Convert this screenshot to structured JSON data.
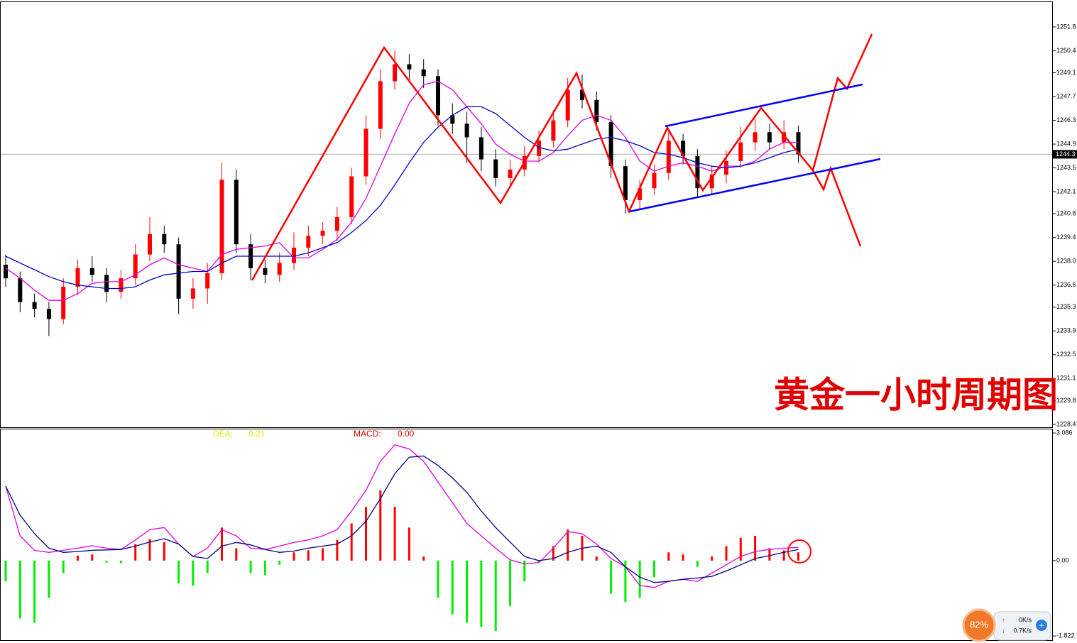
{
  "chart_data": [
    {
      "type": "candlestick",
      "title": "黄金一小时周期图",
      "open": [
        1237.8,
        1237.0,
        1235.6,
        1235.2,
        1234.6,
        1236.5,
        1237.6,
        1237.2,
        1236.2,
        1237.0,
        1238.4,
        1239.6,
        1239.0,
        1235.8,
        1236.4,
        1237.3,
        1242.8,
        1239.0,
        1237.6,
        1237.2,
        1237.9,
        1238.8,
        1239.5,
        1239.8,
        1240.6,
        1243.0,
        1245.8,
        1248.6,
        1249.6,
        1249.3,
        1248.9,
        1246.6,
        1246.1,
        1245.3,
        1244.0,
        1242.9,
        1243.4,
        1244.2,
        1245.1,
        1246.3,
        1248.1,
        1247.5,
        1246.2,
        1243.6,
        1241.6,
        1242.3,
        1243.2,
        1245.1,
        1244.2,
        1242.3,
        1243.1,
        1243.9,
        1245.0,
        1245.6,
        1245.0,
        1245.6
      ],
      "high": [
        1238.4,
        1237.4,
        1236.1,
        1235.6,
        1237.0,
        1238.1,
        1238.3,
        1237.6,
        1237.5,
        1239.0,
        1240.6,
        1240.1,
        1239.4,
        1237.0,
        1237.9,
        1243.8,
        1243.4,
        1239.6,
        1238.1,
        1238.5,
        1239.7,
        1240.1,
        1240.3,
        1241.2,
        1243.5,
        1246.6,
        1249.3,
        1250.4,
        1250.2,
        1249.9,
        1249.3,
        1247.3,
        1246.8,
        1245.9,
        1244.6,
        1244.0,
        1244.8,
        1245.7,
        1246.9,
        1248.8,
        1249.0,
        1248.0,
        1246.6,
        1244.0,
        1242.8,
        1243.7,
        1245.8,
        1245.5,
        1244.6,
        1243.6,
        1244.5,
        1245.9,
        1246.4,
        1246.1,
        1246.3,
        1246.0
      ],
      "low": [
        1236.5,
        1235.0,
        1234.7,
        1233.6,
        1234.3,
        1236.0,
        1236.8,
        1235.6,
        1235.8,
        1236.6,
        1238.0,
        1238.5,
        1234.9,
        1235.2,
        1235.5,
        1236.9,
        1238.5,
        1236.9,
        1236.7,
        1236.8,
        1237.5,
        1238.3,
        1239.0,
        1239.2,
        1240.2,
        1242.5,
        1245.2,
        1248.1,
        1248.7,
        1248.2,
        1246.0,
        1245.5,
        1243.8,
        1243.3,
        1242.4,
        1242.5,
        1243.0,
        1243.8,
        1244.7,
        1245.9,
        1247.0,
        1245.7,
        1242.9,
        1240.8,
        1241.1,
        1241.9,
        1242.8,
        1243.7,
        1241.8,
        1241.9,
        1242.6,
        1243.5,
        1244.5,
        1244.6,
        1244.6,
        1243.8
      ],
      "close": [
        1237.0,
        1235.6,
        1235.2,
        1234.6,
        1236.5,
        1237.6,
        1237.2,
        1236.2,
        1237.0,
        1238.4,
        1239.6,
        1239.0,
        1235.8,
        1236.4,
        1237.3,
        1242.8,
        1239.0,
        1237.6,
        1237.2,
        1237.9,
        1238.8,
        1239.5,
        1239.8,
        1240.6,
        1243.0,
        1245.8,
        1248.6,
        1249.6,
        1249.3,
        1248.9,
        1246.6,
        1246.1,
        1245.3,
        1244.0,
        1242.9,
        1243.4,
        1244.2,
        1245.1,
        1246.3,
        1248.1,
        1247.5,
        1246.2,
        1243.6,
        1241.6,
        1242.3,
        1243.2,
        1245.1,
        1244.2,
        1242.3,
        1243.1,
        1243.9,
        1245.0,
        1245.6,
        1245.0,
        1245.6,
        1244.3
      ],
      "up_color": "#ff0000",
      "down_color": "#000000",
      "series": [
        {
          "color": "#e000e0",
          "values": [
            1237.6,
            1237.0,
            1236.3,
            1235.7,
            1235.7,
            1236.1,
            1236.7,
            1236.8,
            1236.8,
            1237.2,
            1237.8,
            1238.2,
            1237.8,
            1237.6,
            1237.4,
            1238.4,
            1238.7,
            1238.8,
            1238.9,
            1239.1,
            1238.2,
            1238.2,
            1238.7,
            1239.3,
            1240.3,
            1241.7,
            1243.6,
            1245.5,
            1247.3,
            1248.4,
            1248.6,
            1248.1,
            1247.1,
            1246.1,
            1244.9,
            1244.3,
            1243.9,
            1243.9,
            1244.4,
            1245.4,
            1246.3,
            1246.6,
            1246.3,
            1245.3,
            1243.9,
            1243.3,
            1243.6,
            1243.8,
            1243.6,
            1243.3,
            1243.6,
            1243.6,
            1243.9,
            1244.6,
            1245.0,
            1245.0
          ]
        },
        {
          "color": "#0000cc",
          "values": [
            1238.3,
            1237.9,
            1237.5,
            1237.1,
            1236.8,
            1236.6,
            1236.5,
            1236.4,
            1236.4,
            1236.5,
            1236.9,
            1237.2,
            1237.3,
            1237.4,
            1237.4,
            1237.9,
            1238.3,
            1238.3,
            1238.3,
            1238.3,
            1238.3,
            1238.5,
            1238.8,
            1239.1,
            1239.7,
            1240.4,
            1241.3,
            1242.5,
            1243.8,
            1245.0,
            1245.9,
            1246.6,
            1247.1,
            1247.1,
            1246.7,
            1246.0,
            1245.3,
            1244.7,
            1244.5,
            1244.6,
            1244.9,
            1245.2,
            1245.3,
            1245.1,
            1244.8,
            1244.4,
            1244.3,
            1244.1,
            1243.8,
            1243.6,
            1243.5,
            1243.6,
            1243.8,
            1244.1,
            1244.4,
            1244.6
          ]
        }
      ],
      "last_price": {
        "value": 1244.3,
        "label": "1244.3"
      },
      "ylim": [
        1228.23,
        1253.3
      ],
      "yticks": [
        1251.8,
        1250.4,
        1249.1,
        1247.7,
        1246.3,
        1244.9,
        1243.5,
        1242.1,
        1240.8,
        1239.4,
        {
          "value": 1238,
          "label": "1238.0"
        },
        1236.6,
        1235.3,
        1233.9,
        1232.5,
        1231.1,
        1229.8,
        1228.4
      ]
    },
    {
      "type": "macd",
      "legend": [
        {
          "name": "DEA:",
          "value": 0.21,
          "color": "#e8e800"
        },
        {
          "name": "MACD:",
          "value": 0,
          "value_label": "0.00",
          "color": "#e00000"
        }
      ],
      "values": [
        -0.5,
        -1.4,
        -1.5,
        -0.9,
        -0.3,
        0.12,
        0.15,
        -0.05,
        -0.06,
        0.4,
        0.52,
        0.45,
        -0.55,
        -0.6,
        -0.3,
        0.8,
        0.3,
        -0.3,
        -0.35,
        -0.1,
        0.2,
        0.25,
        0.3,
        0.5,
        0.9,
        1.3,
        1.7,
        1.3,
        0.8,
        0.1,
        -0.9,
        -1.3,
        -1.5,
        -1.6,
        -1.7,
        -1.1,
        -0.5,
        -0.05,
        0.35,
        0.75,
        0.6,
        0.1,
        -0.8,
        -1.0,
        -0.9,
        -0.4,
        0.2,
        0.15,
        -0.15,
        0.1,
        0.35,
        0.55,
        0.6,
        0.3,
        0.25,
        0.2
      ],
      "pos_color": "#ff0000",
      "neg_color": "#00ee00",
      "series": [
        {
          "color": "#e000e0",
          "values": [
            1.8,
            0.6,
            0.25,
            0.2,
            0.25,
            0.3,
            0.36,
            0.3,
            0.27,
            0.5,
            0.75,
            0.8,
            0.4,
            0.1,
            0.3,
            0.75,
            0.6,
            0.3,
            0.27,
            0.35,
            0.44,
            0.5,
            0.6,
            0.75,
            1.2,
            1.7,
            2.4,
            2.8,
            2.7,
            2.4,
            1.9,
            1.4,
            0.9,
            0.6,
            0.3,
            0.02,
            -0.08,
            -0.05,
            0.3,
            0.7,
            0.65,
            0.4,
            0.05,
            -0.15,
            -0.6,
            -0.65,
            -0.5,
            -0.45,
            -0.5,
            -0.3,
            -0.1,
            0.1,
            0.22,
            0.27,
            0.3,
            0.32
          ]
        },
        {
          "color": "#000080",
          "values": [
            1.8,
            1.1,
            0.65,
            0.3,
            0.2,
            0.22,
            0.25,
            0.26,
            0.27,
            0.35,
            0.45,
            0.53,
            0.4,
            0.1,
            0.05,
            0.35,
            0.44,
            0.38,
            0.27,
            0.2,
            0.23,
            0.3,
            0.35,
            0.4,
            0.6,
            0.95,
            1.5,
            2.1,
            2.5,
            2.53,
            2.3,
            2.0,
            1.65,
            1.2,
            0.8,
            0.45,
            0.1,
            0.0,
            0.05,
            0.2,
            0.3,
            0.35,
            0.2,
            -0.15,
            -0.4,
            -0.53,
            -0.5,
            -0.45,
            -0.42,
            -0.38,
            -0.25,
            -0.1,
            0.05,
            0.12,
            0.2,
            0.27
          ]
        }
      ],
      "ylim": [
        -1.94,
        3.19
      ],
      "yticks": [
        3.086,
        {
          "value": 0,
          "label": "0.00"
        },
        -1.822
      ]
    }
  ],
  "widget": {
    "percent": "82%",
    "upload": "0K/s",
    "download": "0.7K/s"
  }
}
